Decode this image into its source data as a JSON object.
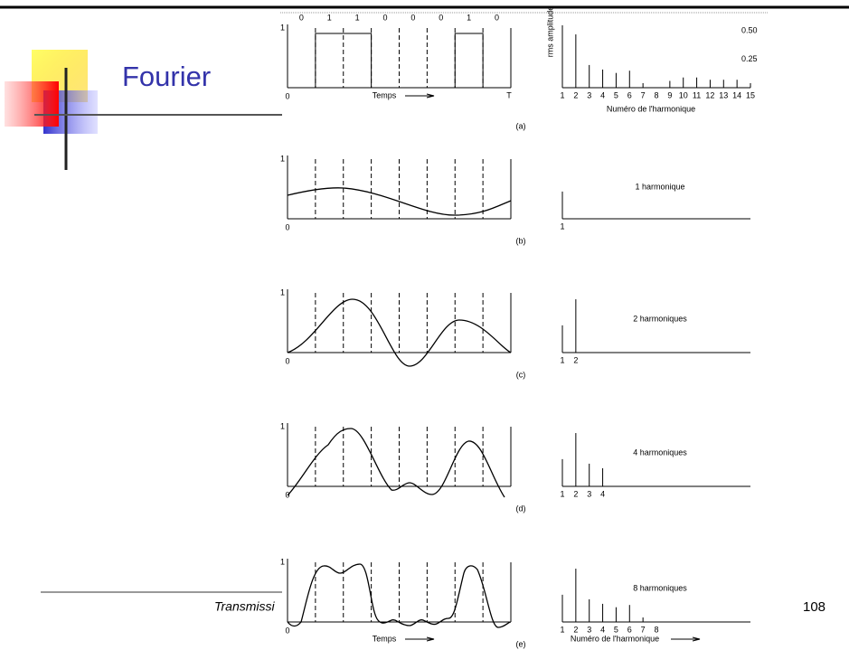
{
  "slide": {
    "title": "Fourier",
    "footer": "Transmissi",
    "page_number": "108"
  },
  "figure": {
    "bits": [
      "0",
      "1",
      "1",
      "0",
      "0",
      "0",
      "1",
      "0"
    ],
    "level_one": "1",
    "level_zero": "0",
    "period": "T",
    "time_label": "Temps",
    "y_axis_label": "rms amplitude",
    "x_axis_label": "Numéro de l'harmonique",
    "ylim": [
      0,
      0.55
    ],
    "yticks": [
      {
        "value": 0.5,
        "label": "0.50"
      },
      {
        "value": 0.25,
        "label": "0.25"
      }
    ],
    "amplitudes": [
      0.24,
      0.47,
      0.2,
      0.16,
      0.13,
      0.15,
      0.04,
      0,
      0.06,
      0.09,
      0.09,
      0.07,
      0.07,
      0.07,
      0.04
    ],
    "panels": [
      {
        "tag": "(a)",
        "harmonic_labels": [
          "1",
          "2",
          "3",
          "4",
          "5",
          "6",
          "7",
          "8",
          "9",
          "10",
          "11",
          "12",
          "13",
          "14",
          "15"
        ]
      },
      {
        "tag": "(b)",
        "caption": "1 harmonique",
        "harmonic_labels": [
          "1"
        ]
      },
      {
        "tag": "(c)",
        "caption": "2 harmoniques",
        "harmonic_labels": [
          "1",
          "2"
        ]
      },
      {
        "tag": "(d)",
        "caption": "4 harmoniques",
        "harmonic_labels": [
          "1",
          "2",
          "3",
          "4"
        ]
      },
      {
        "tag": "(e)",
        "caption": "8 harmoniques",
        "harmonic_labels": [
          "1",
          "2",
          "3",
          "4",
          "5",
          "6",
          "7",
          "8"
        ]
      }
    ]
  }
}
